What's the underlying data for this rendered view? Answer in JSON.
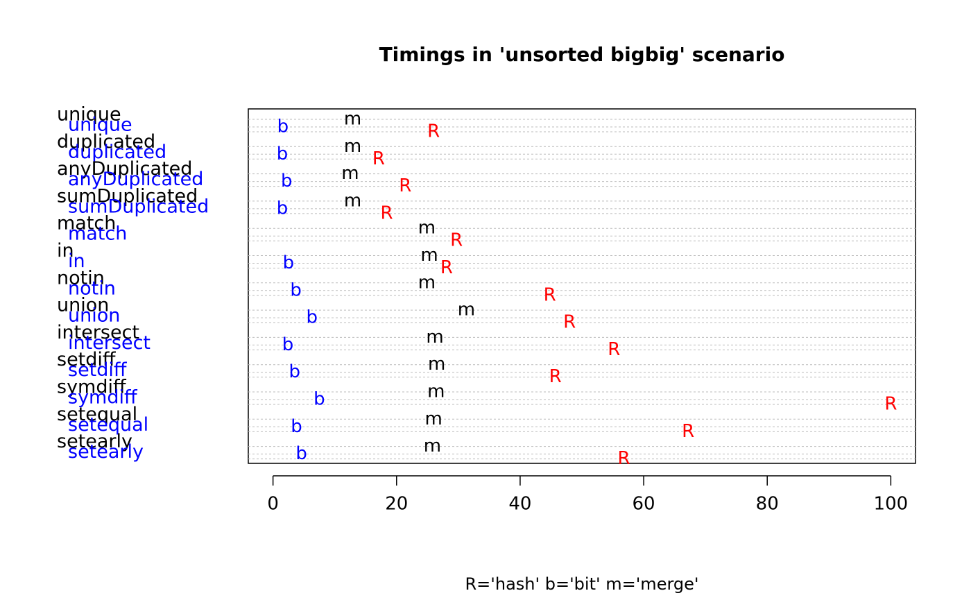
{
  "chart_data": {
    "type": "dotchart",
    "title": "Timings in 'unsorted bigbig' scenario",
    "legend_text": "R='hash'   b='bit'   m='merge'",
    "categories": [
      "unique",
      "duplicated",
      "anyDuplicated",
      "sumDuplicated",
      "match",
      "in",
      "notin",
      "union",
      "intersect",
      "setdiff",
      "symdiff",
      "setequal",
      "setearly"
    ],
    "label_colors": [
      "#000000",
      "#0000ff"
    ],
    "series": [
      {
        "name": "m",
        "color": "#000000",
        "values": [
          12.9,
          12.9,
          12.5,
          12.9,
          24.9,
          25.3,
          24.9,
          31.3,
          26.2,
          26.5,
          26.4,
          26.0,
          25.8
        ]
      },
      {
        "name": "b",
        "color": "#0000ff",
        "values": [
          1.6,
          1.5,
          2.2,
          1.5,
          null,
          2.5,
          3.7,
          6.3,
          2.4,
          3.5,
          7.5,
          3.8,
          4.6
        ]
      },
      {
        "name": "R",
        "color": "#ff0000",
        "values": [
          26.0,
          17.1,
          21.4,
          18.4,
          29.7,
          28.1,
          44.8,
          48.0,
          55.2,
          45.7,
          100,
          67.2,
          56.8
        ]
      }
    ],
    "xlim": [
      -4,
      104
    ],
    "xticks": [
      0,
      20,
      40,
      60,
      80,
      100
    ]
  }
}
